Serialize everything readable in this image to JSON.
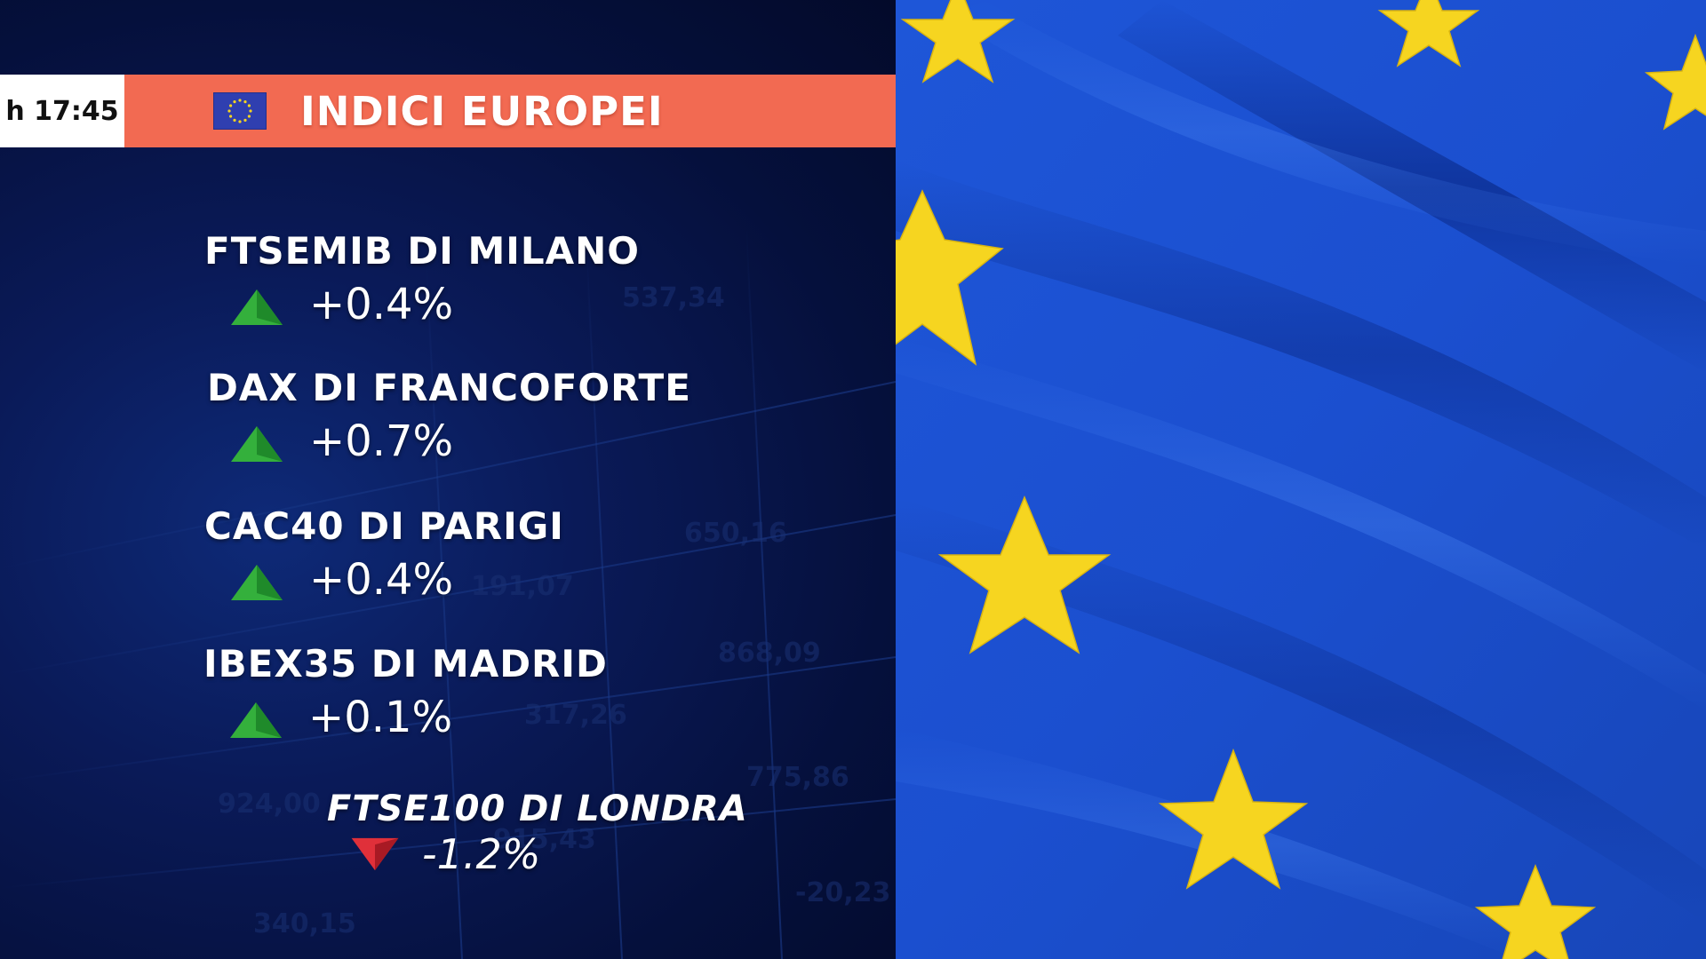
{
  "time": "h 17:45",
  "header": {
    "title": "INDICI EUROPEI",
    "flag_icon": "eu-flag-icon"
  },
  "indices": [
    {
      "name": "FTSEMIB DI MILANO",
      "change": "+0.4%",
      "direction": "up"
    },
    {
      "name": "DAX DI FRANCOFORTE",
      "change": "+0.7%",
      "direction": "up"
    },
    {
      "name": "CAC40 DI PARIGI",
      "change": "+0.4%",
      "direction": "up"
    },
    {
      "name": "IBEX35 DI MADRID",
      "change": "+0.1%",
      "direction": "up"
    },
    {
      "name": "FTSE100 DI LONDRA",
      "change": "-1.2%",
      "direction": "down"
    }
  ],
  "background_numbers": [
    "537,34",
    "650,16",
    "191,07",
    "868,09",
    "317,26",
    "775,86",
    "924,00",
    "-20,23",
    "340,15",
    "915,43"
  ],
  "colors": {
    "header_bar": "#f26a52",
    "panel_bg": "#05103c",
    "up_arrow": "#34b03c",
    "down_arrow": "#e0303a",
    "flag_blue": "#1f55d6",
    "flag_star": "#f6d520"
  }
}
